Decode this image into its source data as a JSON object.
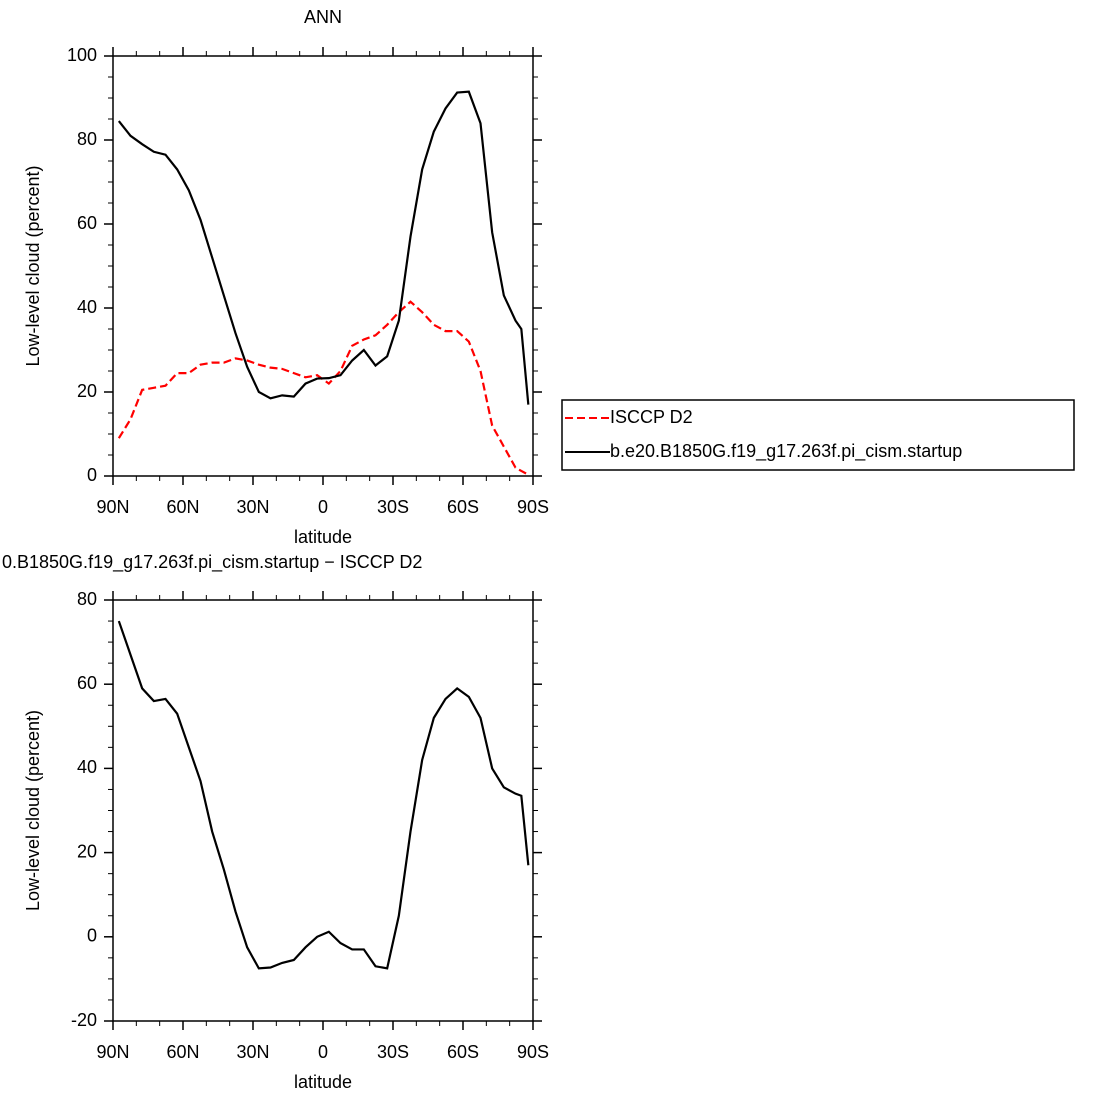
{
  "chart_data": [
    {
      "type": "line",
      "title": "ANN",
      "x_label": "latitude",
      "y_label": "Low-level cloud (percent)",
      "x": [
        87.5,
        82.5,
        77.5,
        72.5,
        67.5,
        62.5,
        57.5,
        52.5,
        47.5,
        42.5,
        37.5,
        32.5,
        27.5,
        22.5,
        17.5,
        12.5,
        7.5,
        2.5,
        -2.5,
        -7.5,
        -12.5,
        -17.5,
        -22.5,
        -27.5,
        -32.5,
        -37.5,
        -42.5,
        -47.5,
        -52.5,
        -57.5,
        -62.5,
        -67.5,
        -72.5,
        -77.5,
        -82.5,
        -85,
        -88
      ],
      "series": [
        {
          "name": "ISCCP D2",
          "color": "#ff0000",
          "dashed": true,
          "values": [
            9,
            13.5,
            20.5,
            21,
            21.5,
            24.5,
            24.5,
            26.5,
            27,
            27,
            28,
            27.5,
            26.5,
            25.8,
            25.5,
            24.5,
            23.5,
            24,
            22,
            25,
            31,
            32.5,
            33.5,
            36,
            39,
            41.5,
            39,
            36,
            34.5,
            34.5,
            32,
            25,
            12,
            7,
            2,
            1.2,
            0.3
          ]
        },
        {
          "name": "b.e20.B1850G.f19_g17.263f.pi_cism.startup",
          "color": "#000000",
          "dashed": false,
          "values": [
            84.5,
            81,
            79,
            77.2,
            76.5,
            73,
            68,
            61,
            52,
            43,
            34,
            26,
            20,
            18.5,
            19.2,
            18.9,
            22,
            23.2,
            23.3,
            24,
            27.5,
            30,
            26.3,
            28.5,
            37,
            57,
            73,
            82,
            87.5,
            91.3,
            91.5,
            84,
            58,
            43,
            37,
            35,
            17
          ]
        }
      ],
      "xlim": [
        90,
        -90
      ],
      "xticks": [
        {
          "value": 90,
          "label": "90N"
        },
        {
          "value": 60,
          "label": "60N"
        },
        {
          "value": 30,
          "label": "30N"
        },
        0,
        {
          "value": -30,
          "label": "30S"
        },
        {
          "value": -60,
          "label": "60S"
        },
        {
          "value": -90,
          "label": "90S"
        }
      ],
      "ylim": [
        0,
        100
      ],
      "yticks": [
        0,
        20,
        40,
        60,
        80,
        100
      ],
      "legend": "right"
    },
    {
      "type": "line",
      "title": "0.B1850G.f19_g17.263f.pi_cism.startup − ISCCP D2",
      "x_label": "latitude",
      "y_label": "Low-level cloud (percent)",
      "x": [
        87.5,
        82.5,
        77.5,
        72.5,
        67.5,
        62.5,
        57.5,
        52.5,
        47.5,
        42.5,
        37.5,
        32.5,
        27.5,
        22.5,
        17.5,
        12.5,
        7.5,
        2.5,
        -2.5,
        -7.5,
        -12.5,
        -17.5,
        -22.5,
        -27.5,
        -32.5,
        -37.5,
        -42.5,
        -47.5,
        -52.5,
        -57.5,
        -62.5,
        -67.5,
        -72.5,
        -77.5,
        -82.5,
        -85,
        -88
      ],
      "series": [
        {
          "color": "#000000",
          "dashed": false,
          "values": [
            75,
            67,
            59,
            56,
            56.5,
            53,
            45,
            37,
            25,
            16,
            6,
            -2.5,
            -7.5,
            -7.3,
            -6.2,
            -5.5,
            -2.5,
            0,
            1.2,
            -1.5,
            -3,
            -3,
            -7,
            -7.5,
            5,
            25,
            42,
            52,
            56.5,
            59,
            57,
            52,
            40,
            35.5,
            34,
            33.5,
            17
          ]
        }
      ],
      "xlim": [
        90,
        -90
      ],
      "xticks": [
        {
          "value": 90,
          "label": "90N"
        },
        {
          "value": 60,
          "label": "60N"
        },
        {
          "value": 30,
          "label": "30N"
        },
        0,
        {
          "value": -30,
          "label": "30S"
        },
        {
          "value": -60,
          "label": "60S"
        },
        {
          "value": -90,
          "label": "90S"
        }
      ],
      "ylim": [
        -20,
        80
      ],
      "yticks": [
        -20,
        0,
        20,
        40,
        60,
        80
      ]
    }
  ]
}
